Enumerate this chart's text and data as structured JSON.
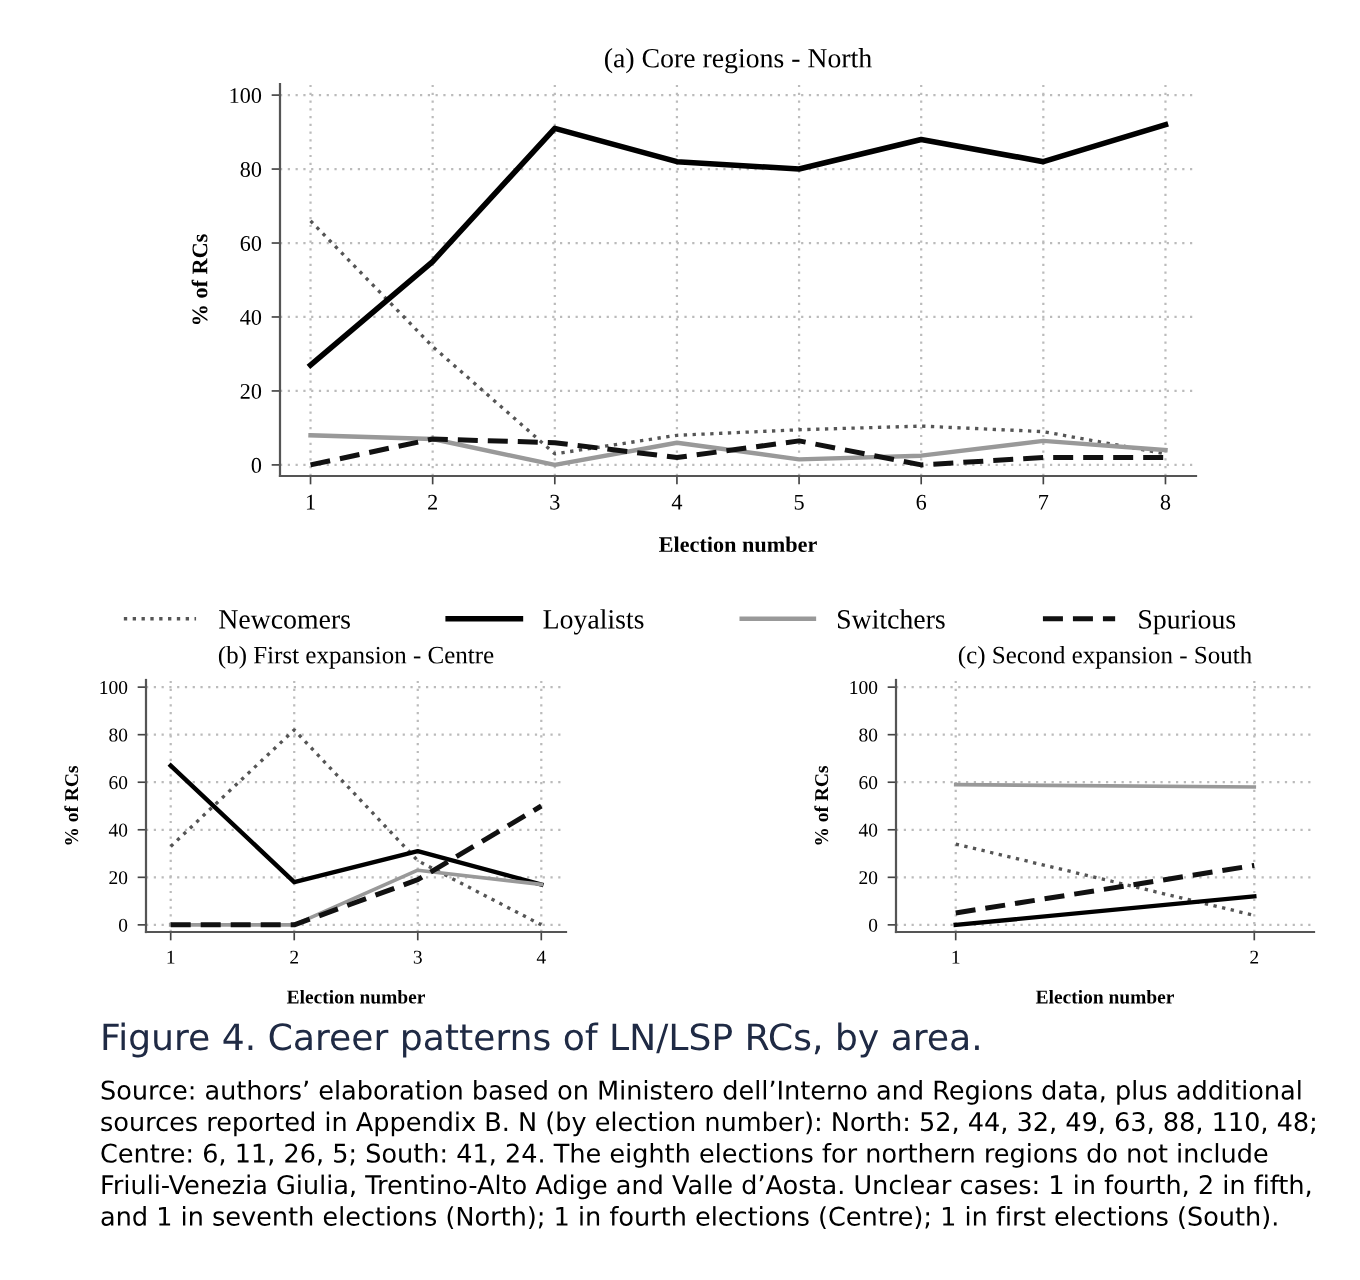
{
  "chart_data": [
    {
      "type": "line",
      "title": "(a) Core regions - North",
      "xlabel": "Election number",
      "ylabel": "% of RCs",
      "x": [
        1,
        2,
        3,
        4,
        5,
        6,
        7,
        8
      ],
      "xlim": [
        0.75,
        8.25
      ],
      "xticks": [
        1,
        2,
        3,
        4,
        5,
        6,
        7,
        8
      ],
      "ylim": [
        -3,
        103
      ],
      "yticks": [
        0,
        20,
        40,
        60,
        80,
        100
      ],
      "grid": true,
      "legend": "bottom",
      "marker": "none",
      "series": [
        {
          "name": "Newcomers",
          "color": "#555555",
          "line_style": "dotted",
          "values": [
            66,
            32,
            3,
            8,
            9.5,
            10.5,
            9,
            3
          ]
        },
        {
          "name": "Loyalists",
          "color": "#000000",
          "line_style": "solid",
          "values": [
            27,
            55,
            91,
            82,
            80,
            88,
            82,
            92
          ]
        },
        {
          "name": "Switchers",
          "color": "#999999",
          "line_style": "solid",
          "values": [
            8,
            7,
            0,
            6,
            1.5,
            2.5,
            6.5,
            4
          ]
        },
        {
          "name": "Spurious",
          "color": "#111111",
          "line_style": "dashed",
          "values": [
            0,
            7,
            6,
            2,
            6.5,
            0,
            2,
            2
          ]
        }
      ],
      "annotations": [
        "Figure 4. Career patterns of LN/LSP RCs, by area.",
        "Source: authors’ elaboration based on Ministero dell’Interno and Regions data, plus additional sources reported in Appendix B. N (by election number): North: 52, 44, 32, 49, 63, 88, 110, 48; Centre: 6, 11, 26, 5; South: 41, 24. The eighth elections for northern regions do not include Friuli-Venezia Giulia, Trentino-Alto Adige and Valle d’Aosta. Unclear cases: 1 in fourth, 2 in fifth, and 1 in seventh elections (North); 1 in fourth elections (Centre); 1 in first elections (South)."
      ]
    },
    {
      "type": "line",
      "title": "(b) First expansion - Centre",
      "xlabel": "Election number",
      "ylabel": "% of RCs",
      "x": [
        1,
        2,
        3,
        4
      ],
      "xlim": [
        0.8,
        4.2
      ],
      "xticks": [
        1,
        2,
        3,
        4
      ],
      "ylim": [
        -3,
        103
      ],
      "yticks": [
        0,
        20,
        40,
        60,
        80,
        100
      ],
      "grid": true,
      "marker": "none",
      "series": [
        {
          "color": "#555555",
          "line_style": "dotted",
          "values": [
            33,
            82,
            27,
            0
          ]
        },
        {
          "color": "#000000",
          "line_style": "solid",
          "values": [
            67,
            18,
            31,
            17
          ]
        },
        {
          "color": "#999999",
          "line_style": "solid",
          "values": [
            0,
            0,
            23,
            17
          ]
        },
        {
          "color": "#111111",
          "line_style": "dashed",
          "values": [
            0,
            0,
            19,
            50
          ]
        }
      ]
    },
    {
      "type": "line",
      "title": "(c) Second expansion - South",
      "xlabel": "Election number",
      "ylabel": "% of RCs",
      "x": [
        1,
        2
      ],
      "xlim": [
        0.8,
        2.2
      ],
      "xticks": [
        1,
        2
      ],
      "ylim": [
        -3,
        103
      ],
      "yticks": [
        0,
        20,
        40,
        60,
        80,
        100
      ],
      "grid": true,
      "marker": "none",
      "series": [
        {
          "color": "#555555",
          "line_style": "dotted",
          "values": [
            34,
            4
          ]
        },
        {
          "color": "#000000",
          "line_style": "solid",
          "values": [
            0,
            12
          ]
        },
        {
          "color": "#999999",
          "line_style": "solid",
          "values": [
            59,
            58
          ]
        },
        {
          "color": "#111111",
          "line_style": "dashed",
          "values": [
            5,
            25
          ]
        }
      ]
    }
  ]
}
